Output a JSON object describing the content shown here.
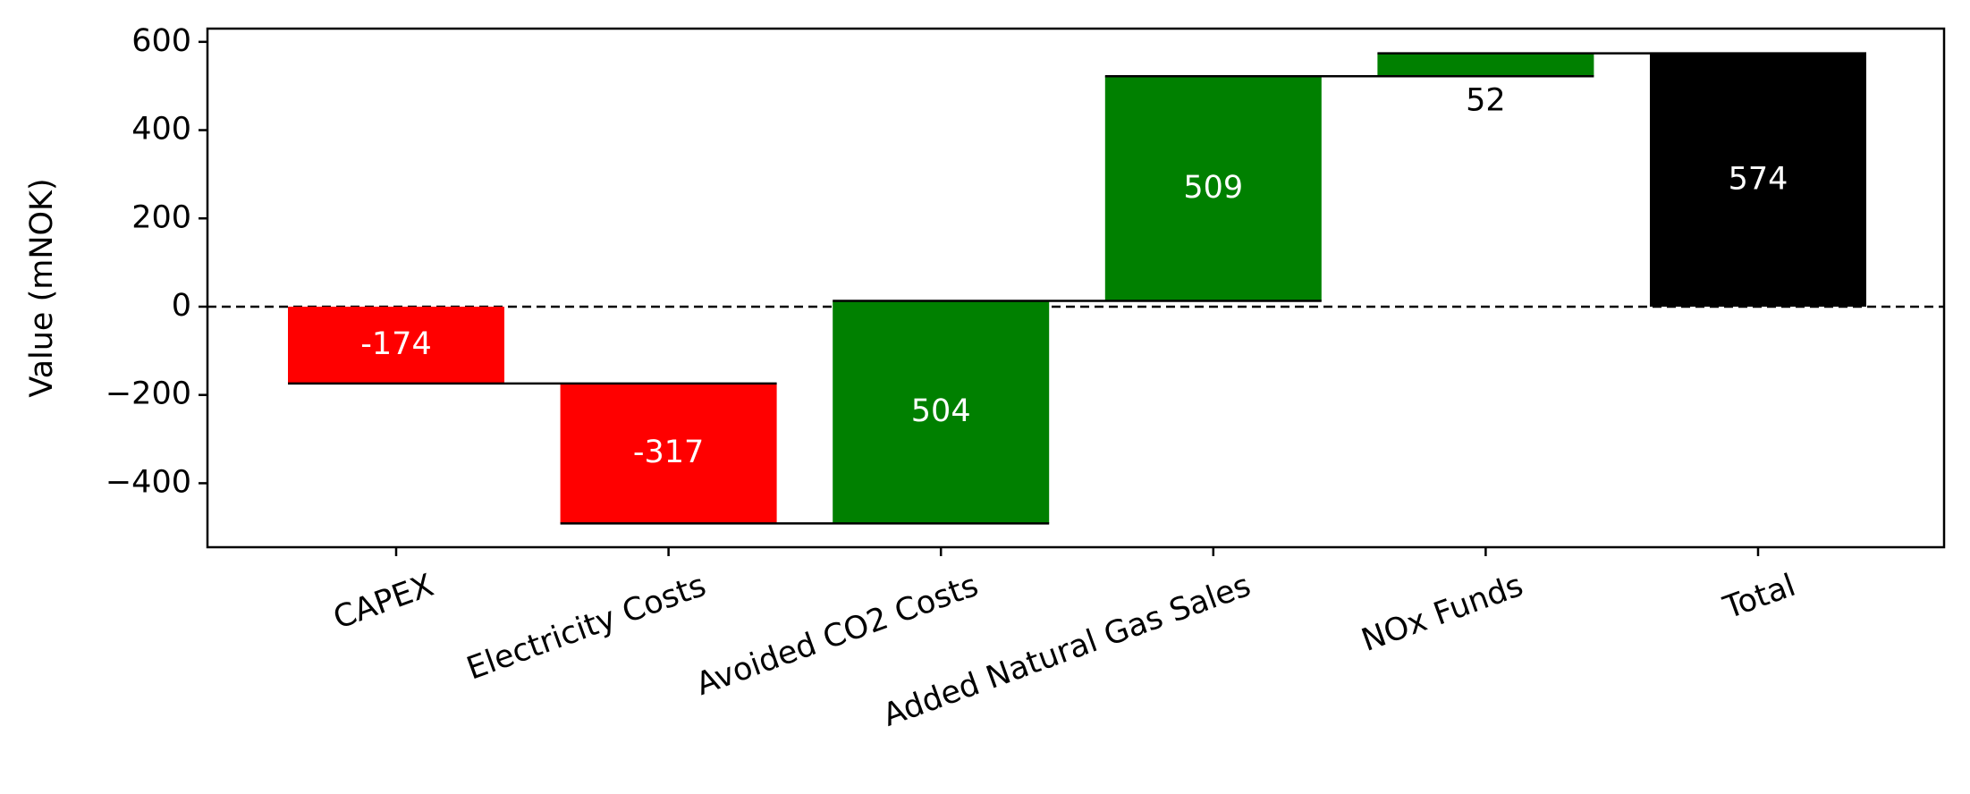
{
  "chart_data": {
    "type": "waterfall",
    "ylabel": "Value (mNOK)",
    "ylim": [
      -545,
      630
    ],
    "yticks": [
      -400,
      -200,
      0,
      200,
      400,
      600
    ],
    "ytick_labels": [
      "−400",
      "−200",
      "0",
      "200",
      "400",
      "600"
    ],
    "zero_line": "dashed",
    "categories": [
      "CAPEX",
      "Electricity Costs",
      "Avoided CO2 Costs",
      "Added Natural Gas Sales",
      "NOx Funds",
      "Total"
    ],
    "values": [
      -174,
      -317,
      504,
      509,
      52,
      574
    ],
    "labels": [
      "-174",
      "-317",
      "504",
      "509",
      "52",
      "574"
    ],
    "kinds": [
      "delta",
      "delta",
      "delta",
      "delta",
      "delta",
      "total"
    ],
    "colors": {
      "negative": "#ff0000",
      "positive": "#008000",
      "total": "#000000",
      "label_inside": "#ffffff",
      "label_outside": "#000000"
    },
    "xtick_rotation_deg": -20
  }
}
